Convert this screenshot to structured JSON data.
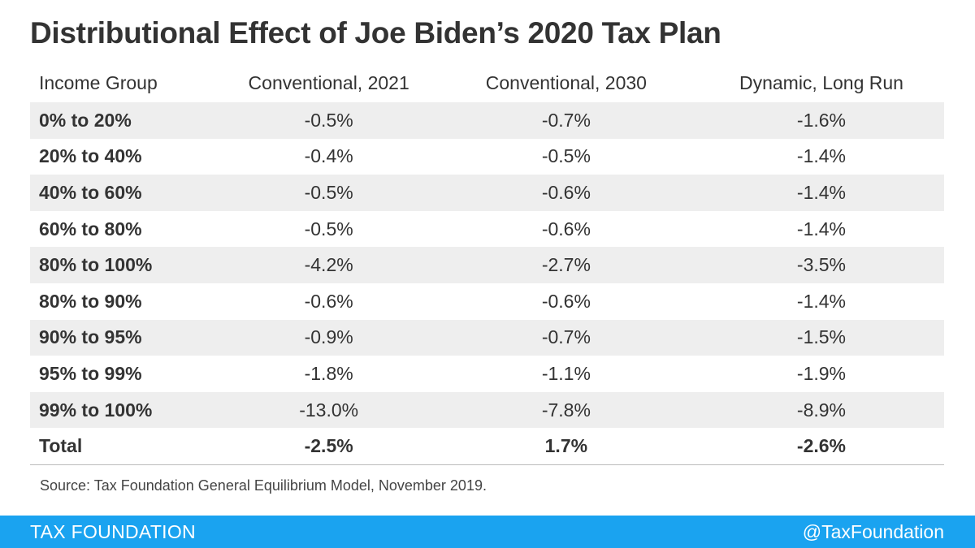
{
  "title": "Distributional Effect of Joe Biden’s 2020 Tax Plan",
  "source": "Source: Tax Foundation General Equilibrium Model, November 2019.",
  "footer": {
    "brand": "TAX FOUNDATION",
    "handle": "@TaxFoundation",
    "color": "#1aa3f0"
  },
  "colors": {
    "row_shade": "#eeeeee",
    "text": "#333333"
  },
  "chart_data": {
    "type": "table",
    "columns": [
      "Income Group",
      "Conventional, 2021",
      "Conventional, 2030",
      "Dynamic, Long Run"
    ],
    "rows": [
      [
        "0% to 20%",
        "-0.5%",
        "-0.7%",
        "-1.6%"
      ],
      [
        "20% to 40%",
        "-0.4%",
        "-0.5%",
        "-1.4%"
      ],
      [
        "40% to 60%",
        "-0.5%",
        "-0.6%",
        "-1.4%"
      ],
      [
        "60% to 80%",
        "-0.5%",
        "-0.6%",
        "-1.4%"
      ],
      [
        "80% to 100%",
        "-4.2%",
        "-2.7%",
        "-3.5%"
      ],
      [
        "80% to 90%",
        "-0.6%",
        "-0.6%",
        "-1.4%"
      ],
      [
        "90% to 95%",
        "-0.9%",
        "-0.7%",
        "-1.5%"
      ],
      [
        "95% to 99%",
        "-1.8%",
        "-1.1%",
        "-1.9%"
      ],
      [
        "99% to 100%",
        "-13.0%",
        "-7.8%",
        "-8.9%"
      ]
    ],
    "total": [
      "Total",
      "-2.5%",
      "1.7%",
      "-2.6%"
    ]
  }
}
